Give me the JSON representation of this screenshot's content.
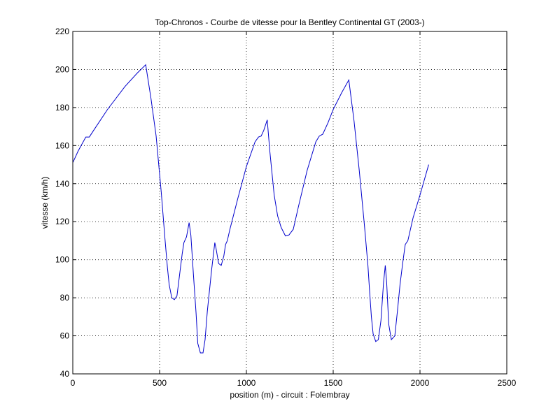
{
  "chart_data": {
    "type": "line",
    "title": "Top-Chronos - Courbe de vitesse pour la Bentley Continental GT (2003-)",
    "xlabel": "position (m) - circuit : Folembray",
    "ylabel": "vitesse (km/h)",
    "xlim": [
      0,
      2500
    ],
    "ylim": [
      40,
      220
    ],
    "xticks": [
      0,
      500,
      1000,
      1500,
      2000,
      2500
    ],
    "yticks": [
      40,
      60,
      80,
      100,
      120,
      140,
      160,
      180,
      200,
      220
    ],
    "x_tick_labels": [
      "0",
      "500",
      "1000",
      "1500",
      "2000",
      "2500"
    ],
    "y_tick_labels": [
      "40",
      "60",
      "80",
      "100",
      "120",
      "140",
      "160",
      "180",
      "200",
      "220"
    ],
    "grid": true,
    "series": [
      {
        "color": "#0000cc",
        "points": [
          [
            0,
            151
          ],
          [
            30,
            157
          ],
          [
            60,
            162
          ],
          [
            75,
            164.5
          ],
          [
            95,
            164.5
          ],
          [
            120,
            168
          ],
          [
            200,
            179
          ],
          [
            300,
            191
          ],
          [
            370,
            198
          ],
          [
            420,
            202.5
          ],
          [
            450,
            185
          ],
          [
            480,
            165
          ],
          [
            510,
            135
          ],
          [
            530,
            112
          ],
          [
            545,
            96
          ],
          [
            555,
            87
          ],
          [
            570,
            80
          ],
          [
            585,
            79
          ],
          [
            600,
            81
          ],
          [
            615,
            92
          ],
          [
            630,
            103
          ],
          [
            640,
            109
          ],
          [
            655,
            112
          ],
          [
            670,
            119.5
          ],
          [
            680,
            113
          ],
          [
            695,
            92
          ],
          [
            710,
            72
          ],
          [
            720,
            56
          ],
          [
            735,
            51
          ],
          [
            750,
            51
          ],
          [
            762,
            58
          ],
          [
            775,
            73
          ],
          [
            800,
            95
          ],
          [
            818,
            109
          ],
          [
            825,
            106
          ],
          [
            840,
            98
          ],
          [
            855,
            97
          ],
          [
            870,
            102
          ],
          [
            880,
            108
          ],
          [
            890,
            110
          ],
          [
            905,
            116
          ],
          [
            950,
            132
          ],
          [
            1000,
            149
          ],
          [
            1050,
            162
          ],
          [
            1070,
            164.5
          ],
          [
            1085,
            165
          ],
          [
            1100,
            168
          ],
          [
            1120,
            173.5
          ],
          [
            1135,
            157
          ],
          [
            1160,
            134
          ],
          [
            1180,
            123
          ],
          [
            1200,
            117
          ],
          [
            1225,
            112.5
          ],
          [
            1245,
            113
          ],
          [
            1270,
            116
          ],
          [
            1300,
            128
          ],
          [
            1350,
            147
          ],
          [
            1400,
            162
          ],
          [
            1420,
            165
          ],
          [
            1440,
            166
          ],
          [
            1470,
            172
          ],
          [
            1500,
            179
          ],
          [
            1550,
            188
          ],
          [
            1590,
            194.5
          ],
          [
            1620,
            173
          ],
          [
            1650,
            147
          ],
          [
            1680,
            118
          ],
          [
            1700,
            97
          ],
          [
            1710,
            83
          ],
          [
            1720,
            70
          ],
          [
            1730,
            61
          ],
          [
            1745,
            57
          ],
          [
            1760,
            58
          ],
          [
            1775,
            68
          ],
          [
            1790,
            88
          ],
          [
            1800,
            97
          ],
          [
            1808,
            88
          ],
          [
            1820,
            66
          ],
          [
            1835,
            58
          ],
          [
            1855,
            60
          ],
          [
            1870,
            73
          ],
          [
            1885,
            87
          ],
          [
            1900,
            98
          ],
          [
            1915,
            108
          ],
          [
            1930,
            110
          ],
          [
            1960,
            122
          ],
          [
            2000,
            134
          ],
          [
            2050,
            150
          ]
        ]
      }
    ]
  }
}
